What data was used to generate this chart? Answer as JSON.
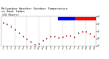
{
  "title": "Milwaukee Weather Outdoor Temperature\nvs Heat Index\n(24 Hours)",
  "title_fontsize": 3.2,
  "bg_color": "#ffffff",
  "grid_color": "#aaaaaa",
  "x_labels": [
    "1",
    "2",
    "3",
    "4",
    "5",
    "6",
    "7",
    "8",
    "9",
    "10",
    "11",
    "12",
    "1",
    "2",
    "3",
    "4",
    "5",
    "6",
    "7",
    "8",
    "9",
    "10",
    "11",
    "12"
  ],
  "ylim": [
    17,
    57
  ],
  "yticks": [
    17,
    27,
    37,
    47,
    57
  ],
  "temp_color": "#ff0000",
  "heat_color": "#000000",
  "legend_blue": "#0000ff",
  "legend_red": "#ff0000",
  "temp_x": [
    0,
    1,
    2,
    3,
    4,
    5,
    6,
    7,
    8,
    9,
    10,
    11,
    12,
    13,
    14,
    15,
    16,
    17,
    18,
    19,
    20,
    21,
    22,
    23
  ],
  "temp_y": [
    48,
    46,
    43,
    39,
    34,
    30,
    26,
    22,
    19,
    20,
    24,
    27,
    30,
    30,
    28,
    29,
    31,
    31,
    29,
    34,
    36,
    36,
    33,
    30
  ],
  "heat_x": [
    0,
    1,
    2,
    3,
    4,
    5,
    6,
    7,
    8,
    9,
    10,
    11,
    12,
    13,
    14,
    15,
    16,
    17,
    18,
    19,
    20,
    21,
    22,
    23
  ],
  "heat_y": [
    49,
    47,
    44,
    40,
    35,
    31,
    27,
    23,
    20,
    21,
    25,
    28,
    31,
    31,
    29,
    30,
    32,
    32,
    30,
    35,
    37,
    37,
    34,
    31
  ],
  "vgrid_positions": [
    3,
    6,
    9,
    12,
    15,
    18,
    21
  ]
}
